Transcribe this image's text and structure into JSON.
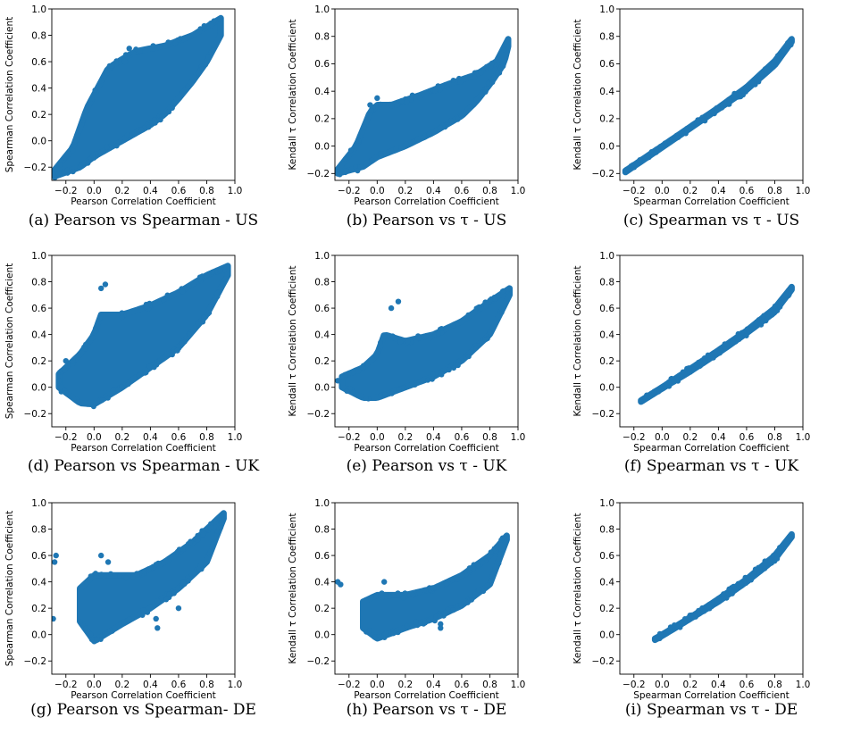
{
  "colors": {
    "marker": "#1f77b4"
  },
  "chart_data": [
    {
      "id": "a",
      "type": "scatter",
      "caption": "(a) Pearson vs Spearman - US",
      "xlabel": "Pearson Correlation Coefficient",
      "ylabel": "Spearman Correlation Coefficient",
      "xlim": [
        -0.3,
        1.0
      ],
      "ylim": [
        -0.3,
        1.0
      ],
      "xticks": [
        "−0.2",
        "0.0",
        "0.2",
        "0.4",
        "0.6",
        "0.8",
        "1.0"
      ],
      "yticks": [
        "−0.2",
        "0.0",
        "0.2",
        "0.4",
        "0.6",
        "0.8",
        "1.0"
      ],
      "band_upper": [
        [
          -0.28,
          -0.22
        ],
        [
          -0.15,
          -0.05
        ],
        [
          -0.05,
          0.25
        ],
        [
          0.05,
          0.45
        ],
        [
          0.1,
          0.55
        ],
        [
          0.2,
          0.62
        ],
        [
          0.3,
          0.68
        ],
        [
          0.5,
          0.72
        ],
        [
          0.7,
          0.8
        ],
        [
          0.9,
          0.93
        ]
      ],
      "band_lower": [
        [
          -0.28,
          -0.27
        ],
        [
          -0.1,
          -0.2
        ],
        [
          0.0,
          -0.12
        ],
        [
          0.2,
          0.0
        ],
        [
          0.4,
          0.12
        ],
        [
          0.5,
          0.2
        ],
        [
          0.6,
          0.32
        ],
        [
          0.7,
          0.45
        ],
        [
          0.8,
          0.6
        ],
        [
          0.9,
          0.8
        ],
        [
          0.94,
          0.92
        ]
      ],
      "outliers": [
        [
          -0.25,
          -0.25
        ],
        [
          -0.18,
          -0.1
        ],
        [
          0.22,
          0.6
        ],
        [
          0.25,
          0.7
        ]
      ]
    },
    {
      "id": "b",
      "type": "scatter",
      "caption": "(b) Pearson vs τ - US",
      "xlabel": "Pearson Correlation Coefficient",
      "ylabel": "Kendall τ Correlation Coefficient",
      "xlim": [
        -0.3,
        1.0
      ],
      "ylim": [
        -0.25,
        1.0
      ],
      "xticks": [
        "−0.2",
        "0.0",
        "0.2",
        "0.4",
        "0.6",
        "0.8",
        "1.0"
      ],
      "yticks": [
        "−0.2",
        "0.0",
        "0.2",
        "0.4",
        "0.6",
        "0.8",
        "1.0"
      ],
      "band_upper": [
        [
          -0.28,
          -0.17
        ],
        [
          -0.15,
          0.0
        ],
        [
          -0.05,
          0.25
        ],
        [
          0.0,
          0.3
        ],
        [
          0.1,
          0.3
        ],
        [
          0.3,
          0.37
        ],
        [
          0.5,
          0.45
        ],
        [
          0.7,
          0.52
        ],
        [
          0.85,
          0.62
        ],
        [
          0.93,
          0.78
        ]
      ],
      "band_lower": [
        [
          -0.28,
          -0.2
        ],
        [
          -0.1,
          -0.15
        ],
        [
          0.0,
          -0.08
        ],
        [
          0.2,
          0.0
        ],
        [
          0.4,
          0.1
        ],
        [
          0.6,
          0.22
        ],
        [
          0.7,
          0.32
        ],
        [
          0.8,
          0.45
        ],
        [
          0.9,
          0.6
        ],
        [
          0.94,
          0.77
        ]
      ],
      "outliers": [
        [
          -0.05,
          0.3
        ],
        [
          0.0,
          0.35
        ],
        [
          -0.22,
          -0.18
        ]
      ]
    },
    {
      "id": "c",
      "type": "scatter",
      "caption": "(c) Spearman vs τ - US",
      "xlabel": "Spearman Correlation Coefficient",
      "ylabel": "Kendall τ Correlation Coefficient",
      "xlim": [
        -0.3,
        1.0
      ],
      "ylim": [
        -0.25,
        1.0
      ],
      "xticks": [
        "−0.2",
        "0.0",
        "0.2",
        "0.4",
        "0.6",
        "0.8",
        "1.0"
      ],
      "yticks": [
        "−0.2",
        "0.0",
        "0.2",
        "0.4",
        "0.6",
        "0.8",
        "1.0"
      ],
      "band_upper": [
        [
          -0.26,
          -0.18
        ],
        [
          0.0,
          0.0
        ],
        [
          0.2,
          0.14
        ],
        [
          0.4,
          0.28
        ],
        [
          0.6,
          0.43
        ],
        [
          0.8,
          0.62
        ],
        [
          0.92,
          0.78
        ]
      ],
      "band_lower": [
        [
          -0.26,
          -0.19
        ],
        [
          0.0,
          -0.01
        ],
        [
          0.2,
          0.13
        ],
        [
          0.4,
          0.27
        ],
        [
          0.6,
          0.41
        ],
        [
          0.8,
          0.59
        ],
        [
          0.92,
          0.76
        ]
      ],
      "outliers": []
    },
    {
      "id": "d",
      "type": "scatter",
      "caption": "(d) Pearson vs Spearman - UK",
      "xlabel": "Pearson Correlation Coefficient",
      "ylabel": "Spearman Correlation Coefficient",
      "xlim": [
        -0.3,
        1.0
      ],
      "ylim": [
        -0.3,
        1.0
      ],
      "xticks": [
        "−0.2",
        "0.0",
        "0.2",
        "0.4",
        "0.6",
        "0.8",
        "1.0"
      ],
      "yticks": [
        "−0.2",
        "0.0",
        "0.2",
        "0.4",
        "0.6",
        "0.8",
        "1.0"
      ],
      "band_upper": [
        [
          -0.25,
          0.1
        ],
        [
          -0.1,
          0.25
        ],
        [
          0.0,
          0.4
        ],
        [
          0.05,
          0.55
        ],
        [
          0.2,
          0.55
        ],
        [
          0.4,
          0.62
        ],
        [
          0.6,
          0.72
        ],
        [
          0.8,
          0.85
        ],
        [
          0.95,
          0.92
        ]
      ],
      "band_lower": [
        [
          -0.25,
          0.0
        ],
        [
          -0.1,
          -0.12
        ],
        [
          0.0,
          -0.13
        ],
        [
          0.2,
          0.0
        ],
        [
          0.4,
          0.15
        ],
        [
          0.6,
          0.3
        ],
        [
          0.8,
          0.55
        ],
        [
          0.95,
          0.85
        ]
      ],
      "outliers": [
        [
          0.05,
          0.75
        ],
        [
          0.08,
          0.78
        ],
        [
          -0.2,
          0.2
        ],
        [
          -0.25,
          0.05
        ]
      ]
    },
    {
      "id": "e",
      "type": "scatter",
      "caption": "(e) Pearson vs τ - UK",
      "xlabel": "Pearson Correlation Coefficient",
      "ylabel": "Kendall τ Correlation Coefficient",
      "xlim": [
        -0.3,
        1.0
      ],
      "ylim": [
        -0.3,
        1.0
      ],
      "xticks": [
        "−0.2",
        "0.0",
        "0.2",
        "0.4",
        "0.6",
        "0.8",
        "1.0"
      ],
      "yticks": [
        "−0.2",
        "0.0",
        "0.2",
        "0.4",
        "0.6",
        "0.8",
        "1.0"
      ],
      "band_upper": [
        [
          -0.25,
          0.08
        ],
        [
          -0.1,
          0.15
        ],
        [
          0.0,
          0.25
        ],
        [
          0.05,
          0.4
        ],
        [
          0.2,
          0.35
        ],
        [
          0.4,
          0.4
        ],
        [
          0.6,
          0.5
        ],
        [
          0.8,
          0.65
        ],
        [
          0.94,
          0.75
        ]
      ],
      "band_lower": [
        [
          -0.25,
          0.0
        ],
        [
          -0.1,
          -0.08
        ],
        [
          0.0,
          -0.08
        ],
        [
          0.2,
          0.0
        ],
        [
          0.4,
          0.08
        ],
        [
          0.6,
          0.2
        ],
        [
          0.8,
          0.4
        ],
        [
          0.94,
          0.7
        ]
      ],
      "outliers": [
        [
          0.1,
          0.6
        ],
        [
          0.15,
          0.65
        ],
        [
          -0.28,
          0.05
        ]
      ]
    },
    {
      "id": "f",
      "type": "scatter",
      "caption": "(f) Spearman vs τ - UK",
      "xlabel": "Spearman Correlation Coefficient",
      "ylabel": "Kendall τ Correlation Coefficient",
      "xlim": [
        -0.3,
        1.0
      ],
      "ylim": [
        -0.3,
        1.0
      ],
      "xticks": [
        "−0.2",
        "0.0",
        "0.2",
        "0.4",
        "0.6",
        "0.8",
        "1.0"
      ],
      "yticks": [
        "−0.2",
        "0.0",
        "0.2",
        "0.4",
        "0.6",
        "0.8",
        "1.0"
      ],
      "band_upper": [
        [
          -0.15,
          -0.1
        ],
        [
          0.0,
          0.0
        ],
        [
          0.2,
          0.14
        ],
        [
          0.4,
          0.28
        ],
        [
          0.6,
          0.43
        ],
        [
          0.8,
          0.6
        ],
        [
          0.92,
          0.76
        ]
      ],
      "band_lower": [
        [
          -0.15,
          -0.11
        ],
        [
          0.0,
          -0.01
        ],
        [
          0.2,
          0.12
        ],
        [
          0.4,
          0.26
        ],
        [
          0.6,
          0.41
        ],
        [
          0.8,
          0.57
        ],
        [
          0.92,
          0.74
        ]
      ],
      "outliers": []
    },
    {
      "id": "g",
      "type": "scatter",
      "caption": "(g) Pearson vs Spearman- DE",
      "xlabel": "Pearson Correlation Coefficient",
      "ylabel": "Spearman Correlation Coefficient",
      "xlim": [
        -0.3,
        1.0
      ],
      "ylim": [
        -0.3,
        1.0
      ],
      "xticks": [
        "−0.2",
        "0.0",
        "0.2",
        "0.4",
        "0.6",
        "0.8",
        "1.0"
      ],
      "yticks": [
        "−0.2",
        "0.0",
        "0.2",
        "0.4",
        "0.6",
        "0.8",
        "1.0"
      ],
      "band_upper": [
        [
          -0.1,
          0.35
        ],
        [
          0.0,
          0.45
        ],
        [
          0.1,
          0.45
        ],
        [
          0.3,
          0.45
        ],
        [
          0.5,
          0.55
        ],
        [
          0.7,
          0.7
        ],
        [
          0.92,
          0.92
        ]
      ],
      "band_lower": [
        [
          -0.1,
          0.1
        ],
        [
          0.0,
          -0.05
        ],
        [
          0.2,
          0.08
        ],
        [
          0.4,
          0.2
        ],
        [
          0.6,
          0.35
        ],
        [
          0.8,
          0.55
        ],
        [
          0.92,
          0.88
        ]
      ],
      "outliers": [
        [
          -0.28,
          0.55
        ],
        [
          -0.27,
          0.6
        ],
        [
          -0.29,
          0.12
        ],
        [
          0.05,
          0.6
        ],
        [
          0.1,
          0.55
        ],
        [
          0.45,
          0.05
        ],
        [
          0.44,
          0.12
        ],
        [
          0.6,
          0.2
        ]
      ]
    },
    {
      "id": "h",
      "type": "scatter",
      "caption": "(h) Pearson vs τ - DE",
      "xlabel": "Pearson Correlation Coefficient",
      "ylabel": "Kendall τ Correlation Coefficient",
      "xlim": [
        -0.3,
        1.0
      ],
      "ylim": [
        -0.3,
        1.0
      ],
      "xticks": [
        "−0.2",
        "0.0",
        "0.2",
        "0.4",
        "0.6",
        "0.8",
        "1.0"
      ],
      "yticks": [
        "−0.2",
        "0.0",
        "0.2",
        "0.4",
        "0.6",
        "0.8",
        "1.0"
      ],
      "band_upper": [
        [
          -0.1,
          0.25
        ],
        [
          0.0,
          0.3
        ],
        [
          0.2,
          0.3
        ],
        [
          0.4,
          0.35
        ],
        [
          0.6,
          0.45
        ],
        [
          0.8,
          0.6
        ],
        [
          0.92,
          0.75
        ]
      ],
      "band_lower": [
        [
          -0.1,
          0.05
        ],
        [
          0.0,
          -0.03
        ],
        [
          0.2,
          0.05
        ],
        [
          0.4,
          0.12
        ],
        [
          0.6,
          0.22
        ],
        [
          0.8,
          0.38
        ],
        [
          0.92,
          0.72
        ]
      ],
      "outliers": [
        [
          -0.28,
          0.4
        ],
        [
          -0.26,
          0.38
        ],
        [
          0.05,
          0.4
        ],
        [
          0.45,
          0.05
        ],
        [
          0.45,
          0.08
        ]
      ]
    },
    {
      "id": "i",
      "type": "scatter",
      "caption": "(i) Spearman vs τ - DE",
      "xlabel": "Spearman Correlation Coefficient",
      "ylabel": "Kendall τ Correlation Coefficient",
      "xlim": [
        -0.3,
        1.0
      ],
      "ylim": [
        -0.3,
        1.0
      ],
      "xticks": [
        "−0.2",
        "0.0",
        "0.2",
        "0.4",
        "0.6",
        "0.8",
        "1.0"
      ],
      "yticks": [
        "−0.2",
        "0.0",
        "0.2",
        "0.4",
        "0.6",
        "0.8",
        "1.0"
      ],
      "band_upper": [
        [
          -0.05,
          -0.03
        ],
        [
          0.0,
          0.0
        ],
        [
          0.2,
          0.13
        ],
        [
          0.4,
          0.27
        ],
        [
          0.6,
          0.42
        ],
        [
          0.8,
          0.6
        ],
        [
          0.92,
          0.76
        ]
      ],
      "band_lower": [
        [
          -0.05,
          -0.04
        ],
        [
          0.0,
          -0.01
        ],
        [
          0.2,
          0.12
        ],
        [
          0.4,
          0.25
        ],
        [
          0.6,
          0.4
        ],
        [
          0.8,
          0.57
        ],
        [
          0.92,
          0.74
        ]
      ],
      "outliers": []
    }
  ]
}
